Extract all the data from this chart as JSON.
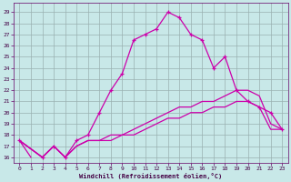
{
  "xlabel": "Windchill (Refroidissement éolien,°C)",
  "background_color": "#c8e8e8",
  "plot_bg_color": "#c8e8e8",
  "grid_color": "#9ab0b0",
  "line_color": "#cc00aa",
  "xlim": [
    -0.5,
    23.5
  ],
  "ylim": [
    15.5,
    29.8
  ],
  "yticks": [
    16,
    17,
    18,
    19,
    20,
    21,
    22,
    23,
    24,
    25,
    26,
    27,
    28,
    29
  ],
  "xticks": [
    0,
    1,
    2,
    3,
    4,
    5,
    6,
    7,
    8,
    9,
    10,
    11,
    12,
    13,
    14,
    15,
    16,
    17,
    18,
    19,
    20,
    21,
    22,
    23
  ],
  "series_main": {
    "x": [
      0,
      2,
      3,
      4,
      5,
      6,
      7,
      8,
      9,
      10,
      11,
      12,
      13,
      14,
      15,
      16,
      17,
      18,
      19,
      20,
      21,
      22,
      23
    ],
    "y": [
      17.5,
      16.0,
      17.0,
      16.0,
      17.5,
      18.0,
      20.0,
      22.0,
      23.5,
      26.5,
      27.0,
      27.5,
      29.0,
      28.5,
      27.0,
      26.5,
      24.0,
      25.0,
      22.0,
      21.0,
      20.5,
      20.0,
      18.5
    ]
  },
  "series_flat1": {
    "x": [
      0,
      2,
      3,
      4,
      5,
      6,
      7,
      8,
      9,
      10,
      11,
      12,
      13,
      14,
      15,
      16,
      17,
      18,
      19,
      20,
      21,
      22,
      23
    ],
    "y": [
      17.5,
      16.0,
      17.0,
      16.0,
      17.0,
      17.5,
      17.5,
      18.0,
      18.0,
      18.5,
      19.0,
      19.5,
      20.0,
      20.5,
      20.5,
      21.0,
      21.0,
      21.5,
      22.0,
      22.0,
      21.5,
      19.0,
      18.5
    ]
  },
  "series_flat2": {
    "x": [
      0,
      2,
      3,
      4,
      5,
      6,
      7,
      8,
      9,
      10,
      11,
      12,
      13,
      14,
      15,
      16,
      17,
      18,
      19,
      20,
      21,
      22,
      23
    ],
    "y": [
      17.5,
      16.0,
      17.0,
      16.0,
      17.0,
      17.5,
      17.5,
      17.5,
      18.0,
      18.0,
      18.5,
      19.0,
      19.5,
      19.5,
      20.0,
      20.0,
      20.5,
      20.5,
      21.0,
      21.0,
      20.5,
      18.5,
      18.5
    ]
  },
  "series_short": {
    "x": [
      0,
      1
    ],
    "y": [
      17.5,
      16.0
    ]
  }
}
